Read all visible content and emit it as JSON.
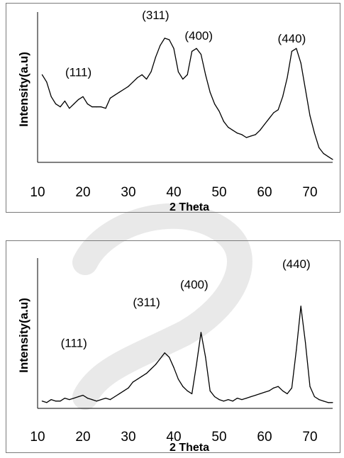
{
  "chart_data": [
    {
      "type": "line",
      "title": "",
      "xlabel": "2 Theta",
      "ylabel": "Intensity(a.u)",
      "xlim": [
        10,
        75
      ],
      "ylim": [
        0,
        100
      ],
      "grid": false,
      "x_ticks": [
        "10",
        "20",
        "30",
        "40",
        "50",
        "60",
        "70"
      ],
      "annotations": [
        {
          "text": "(111)",
          "x": 19,
          "y": 59
        },
        {
          "text": "(311)",
          "x": 36,
          "y": 98
        },
        {
          "text": "(400)",
          "x": 45.5,
          "y": 84
        },
        {
          "text": "(440)",
          "x": 66,
          "y": 82
        }
      ],
      "series": [
        {
          "x": [
            11,
            12,
            13,
            14,
            15,
            16,
            17,
            18,
            19,
            20,
            21,
            22,
            23,
            24,
            25,
            26,
            27,
            28,
            29,
            30,
            31,
            32,
            33,
            34,
            35,
            36,
            37,
            38,
            39,
            40,
            41,
            42,
            43,
            44,
            45,
            46,
            47,
            48,
            49,
            50,
            51,
            52,
            53,
            54,
            55,
            56,
            57,
            58,
            59,
            60,
            61,
            62,
            63,
            64,
            65,
            66,
            67,
            68,
            69,
            70,
            71,
            72,
            73,
            74,
            75
          ],
          "y": [
            60,
            55,
            45,
            40,
            38,
            42,
            37,
            40,
            43,
            45,
            40,
            38,
            38,
            38,
            37,
            44,
            46,
            48,
            50,
            52,
            55,
            58,
            60,
            57,
            62,
            72,
            80,
            85,
            84,
            78,
            62,
            57,
            60,
            76,
            78,
            74,
            60,
            48,
            40,
            35,
            28,
            24,
            22,
            20,
            19,
            17,
            18,
            19,
            22,
            26,
            30,
            34,
            36,
            45,
            58,
            76,
            78,
            68,
            50,
            32,
            20,
            10,
            6,
            4,
            2
          ]
        }
      ]
    },
    {
      "type": "line",
      "title": "",
      "xlabel": "2 Theta",
      "ylabel": "Intensity(a.u)",
      "xlim": [
        10,
        75
      ],
      "ylim": [
        0,
        100
      ],
      "grid": false,
      "x_ticks": [
        "10",
        "20",
        "30",
        "40",
        "50",
        "60",
        "70"
      ],
      "annotations": [
        {
          "text": "(111)",
          "x": 18,
          "y": 42
        },
        {
          "text": "(311)",
          "x": 34,
          "y": 70
        },
        {
          "text": "(400)",
          "x": 44.5,
          "y": 82
        },
        {
          "text": "(440)",
          "x": 67,
          "y": 96
        }
      ],
      "series": [
        {
          "x": [
            11,
            12,
            13,
            14,
            15,
            16,
            17,
            18,
            19,
            20,
            21,
            22,
            23,
            24,
            25,
            26,
            27,
            28,
            29,
            30,
            31,
            32,
            33,
            34,
            35,
            36,
            37,
            38,
            39,
            40,
            41,
            42,
            43,
            44,
            45,
            46,
            47,
            48,
            49,
            50,
            51,
            52,
            53,
            54,
            55,
            56,
            57,
            58,
            59,
            60,
            61,
            62,
            63,
            64,
            65,
            66,
            67,
            68,
            69,
            70,
            71,
            72,
            73,
            74,
            75
          ],
          "y": [
            5,
            4,
            6,
            5,
            5,
            7,
            6,
            7,
            8,
            9,
            7,
            6,
            5,
            6,
            7,
            6,
            8,
            10,
            12,
            14,
            18,
            20,
            22,
            24,
            27,
            30,
            34,
            38,
            35,
            28,
            20,
            15,
            12,
            10,
            30,
            52,
            35,
            12,
            8,
            6,
            5,
            6,
            5,
            7,
            6,
            7,
            8,
            9,
            10,
            11,
            12,
            14,
            15,
            12,
            10,
            14,
            40,
            70,
            45,
            15,
            8,
            6,
            5,
            4,
            4
          ]
        }
      ]
    }
  ]
}
